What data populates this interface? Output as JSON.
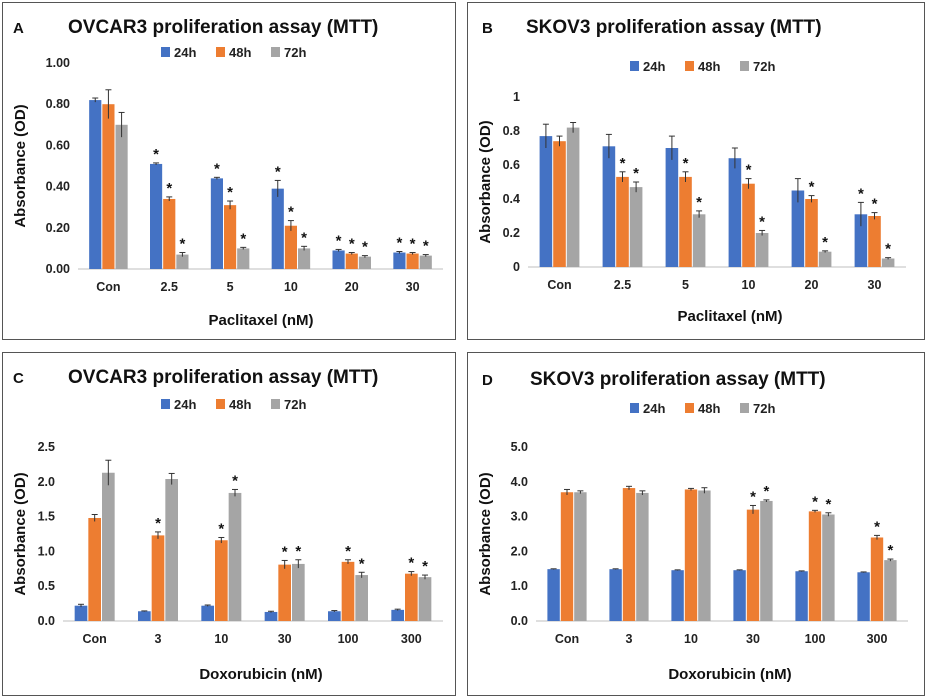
{
  "colors": {
    "h24": "#4472c4",
    "h48": "#ed7d31",
    "h72": "#a5a5a5",
    "axis": "#bfbfbf",
    "error": "#333333"
  },
  "chart_data": [
    {
      "panel_letter": "A",
      "type": "bar",
      "title": "OVCAR3 proliferation assay (MTT)",
      "xlabel": "Paclitaxel (nM)",
      "ylabel": "Absorbance (OD)",
      "ylim": [
        0,
        1.0
      ],
      "yticks": [
        "0.00",
        "0.20",
        "0.40",
        "0.60",
        "0.80",
        "1.00"
      ],
      "categories": [
        "Con",
        "2.5",
        "5",
        "10",
        "20",
        "30"
      ],
      "series": [
        {
          "name": "24h",
          "values": [
            0.82,
            0.51,
            0.44,
            0.39,
            0.09,
            0.08
          ],
          "errors": [
            0.01,
            0.005,
            0.005,
            0.04,
            0.005,
            0.005
          ],
          "sig": [
            false,
            true,
            true,
            true,
            true,
            true
          ]
        },
        {
          "name": "48h",
          "values": [
            0.8,
            0.34,
            0.31,
            0.21,
            0.075,
            0.075
          ],
          "errors": [
            0.07,
            0.01,
            0.02,
            0.025,
            0.005,
            0.005
          ],
          "sig": [
            false,
            true,
            true,
            true,
            true,
            true
          ]
        },
        {
          "name": "72h",
          "values": [
            0.7,
            0.07,
            0.1,
            0.1,
            0.06,
            0.065
          ],
          "errors": [
            0.06,
            0.01,
            0.005,
            0.01,
            0.005,
            0.005
          ],
          "sig": [
            false,
            true,
            true,
            true,
            true,
            true
          ]
        }
      ],
      "legend_position": "top"
    },
    {
      "panel_letter": "B",
      "type": "bar",
      "title": "SKOV3 proliferation assay (MTT)",
      "xlabel": "Paclitaxel (nM)",
      "ylabel": "Absorbance (OD)",
      "ylim": [
        0,
        1.0
      ],
      "yticks": [
        "0",
        "0.2",
        "0.4",
        "0.6",
        "0.8",
        "1"
      ],
      "categories": [
        "Con",
        "2.5",
        "5",
        "10",
        "20",
        "30"
      ],
      "series": [
        {
          "name": "24h",
          "values": [
            0.77,
            0.71,
            0.7,
            0.64,
            0.45,
            0.31
          ],
          "errors": [
            0.07,
            0.07,
            0.07,
            0.06,
            0.07,
            0.07
          ],
          "sig": [
            false,
            false,
            false,
            false,
            false,
            true
          ]
        },
        {
          "name": "48h",
          "values": [
            0.74,
            0.53,
            0.53,
            0.49,
            0.4,
            0.3
          ],
          "errors": [
            0.03,
            0.03,
            0.03,
            0.03,
            0.02,
            0.02
          ],
          "sig": [
            false,
            true,
            true,
            true,
            true,
            true
          ]
        },
        {
          "name": "72h",
          "values": [
            0.82,
            0.47,
            0.31,
            0.2,
            0.09,
            0.05
          ],
          "errors": [
            0.03,
            0.03,
            0.02,
            0.015,
            0.005,
            0.005
          ],
          "sig": [
            false,
            true,
            true,
            true,
            true,
            true
          ]
        }
      ],
      "legend_position": "top"
    },
    {
      "panel_letter": "C",
      "type": "bar",
      "title": "OVCAR3 proliferation assay (MTT)",
      "xlabel": "Doxorubicin (nM)",
      "ylabel": "Absorbance (OD)",
      "ylim": [
        0,
        2.5
      ],
      "yticks": [
        "0.0",
        "0.5",
        "1.0",
        "1.5",
        "2.0",
        "2.5"
      ],
      "categories": [
        "Con",
        "3",
        "10",
        "30",
        "100",
        "300"
      ],
      "series": [
        {
          "name": "24h",
          "values": [
            0.22,
            0.14,
            0.22,
            0.13,
            0.14,
            0.16
          ],
          "errors": [
            0.02,
            0.005,
            0.01,
            0.01,
            0.01,
            0.01
          ],
          "sig": [
            false,
            false,
            false,
            false,
            false,
            false
          ]
        },
        {
          "name": "48h",
          "values": [
            1.48,
            1.23,
            1.16,
            0.81,
            0.85,
            0.68
          ],
          "errors": [
            0.05,
            0.05,
            0.04,
            0.06,
            0.03,
            0.03
          ],
          "sig": [
            false,
            true,
            true,
            true,
            true,
            true
          ]
        },
        {
          "name": "72h",
          "values": [
            2.13,
            2.04,
            1.84,
            0.82,
            0.66,
            0.63
          ],
          "errors": [
            0.18,
            0.08,
            0.05,
            0.06,
            0.04,
            0.03
          ],
          "sig": [
            false,
            false,
            true,
            true,
            true,
            true
          ]
        }
      ],
      "legend_position": "top"
    },
    {
      "panel_letter": "D",
      "type": "bar",
      "title": "SKOV3 proliferation assay (MTT)",
      "xlabel": "Doxorubicin (nM)",
      "ylabel": "Absorbance (OD)",
      "ylim": [
        0,
        5.0
      ],
      "yticks": [
        "0.0",
        "1.0",
        "2.0",
        "3.0",
        "4.0",
        "5.0"
      ],
      "categories": [
        "Con",
        "3",
        "10",
        "30",
        "100",
        "300"
      ],
      "series": [
        {
          "name": "24h",
          "values": [
            1.49,
            1.49,
            1.46,
            1.46,
            1.43,
            1.4
          ],
          "errors": [
            0.01,
            0.01,
            0.01,
            0.01,
            0.01,
            0.01
          ],
          "sig": [
            false,
            false,
            false,
            false,
            false,
            false
          ]
        },
        {
          "name": "48h",
          "values": [
            3.7,
            3.82,
            3.78,
            3.2,
            3.15,
            2.4
          ],
          "errors": [
            0.08,
            0.05,
            0.03,
            0.12,
            0.03,
            0.06
          ],
          "sig": [
            false,
            false,
            false,
            true,
            true,
            true
          ]
        },
        {
          "name": "72h",
          "values": [
            3.7,
            3.68,
            3.75,
            3.45,
            3.06,
            1.75
          ],
          "errors": [
            0.04,
            0.06,
            0.08,
            0.03,
            0.05,
            0.03
          ],
          "sig": [
            false,
            false,
            false,
            true,
            true,
            true
          ]
        }
      ],
      "legend_position": "top"
    }
  ]
}
